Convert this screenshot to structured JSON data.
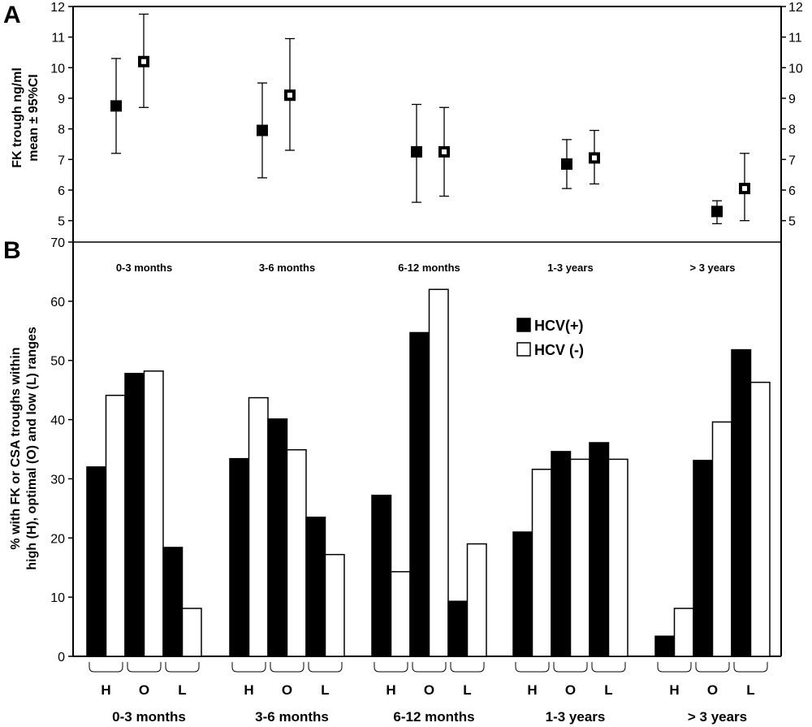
{
  "panelA": {
    "label": "A",
    "ylabel_lines": [
      "FK trough  ng/ml",
      "mean ± 95%CI"
    ],
    "chart_data": {
      "type": "scatter",
      "categories": [
        "0-3 months",
        "3-6 months",
        "6-12 months",
        "1-3 years",
        "> 3 years"
      ],
      "ylim": [
        4.3,
        12
      ],
      "yticks": [
        5,
        6,
        7,
        8,
        9,
        10,
        11,
        12
      ],
      "series": [
        {
          "name": "HCV(+)",
          "marker": "filled-square",
          "mean": [
            8.75,
            7.95,
            7.25,
            6.85,
            5.3
          ],
          "lower": [
            7.2,
            6.4,
            5.6,
            6.05,
            4.9
          ],
          "upper": [
            10.3,
            9.5,
            8.8,
            7.65,
            5.65
          ]
        },
        {
          "name": "HCV (-)",
          "marker": "open-square",
          "mean": [
            10.2,
            9.1,
            7.25,
            7.05,
            6.05
          ],
          "lower": [
            8.7,
            7.3,
            5.8,
            6.2,
            5.0
          ],
          "upper": [
            11.75,
            10.95,
            8.7,
            7.95,
            7.2
          ]
        }
      ]
    }
  },
  "panelB": {
    "label": "B",
    "ylabel_lines": [
      "% with FK or CSA troughs within",
      "high (H), optimal (O) and low (L) ranges"
    ],
    "chart_data": {
      "type": "bar",
      "groups": [
        "0-3 months",
        "3-6 months",
        "6-12 months",
        "1-3 years",
        "> 3 years"
      ],
      "subcategories": [
        "H",
        "O",
        "L"
      ],
      "ylim": [
        0,
        70
      ],
      "yticks": [
        0,
        10,
        20,
        30,
        40,
        50,
        60,
        70
      ],
      "series": [
        {
          "name": "HCV(+)",
          "fill": "#000000",
          "values": [
            [
              32,
              47.8,
              18.4
            ],
            [
              33.4,
              40.1,
              23.5
            ],
            [
              27.2,
              54.7,
              9.3
            ],
            [
              21,
              34.6,
              36.1
            ],
            [
              3.4,
              33.1,
              51.8
            ]
          ]
        },
        {
          "name": "HCV (-)",
          "fill": "#ffffff",
          "values": [
            [
              44.1,
              48.2,
              8.1
            ],
            [
              43.7,
              34.9,
              17.2
            ],
            [
              14.3,
              62,
              19
            ],
            [
              31.6,
              33.3,
              33.3
            ],
            [
              8.1,
              39.6,
              46.3
            ]
          ]
        }
      ],
      "legend": {
        "placement": "upper-middle-right",
        "entries": [
          "HCV(+)",
          "HCV (-)"
        ]
      }
    }
  }
}
